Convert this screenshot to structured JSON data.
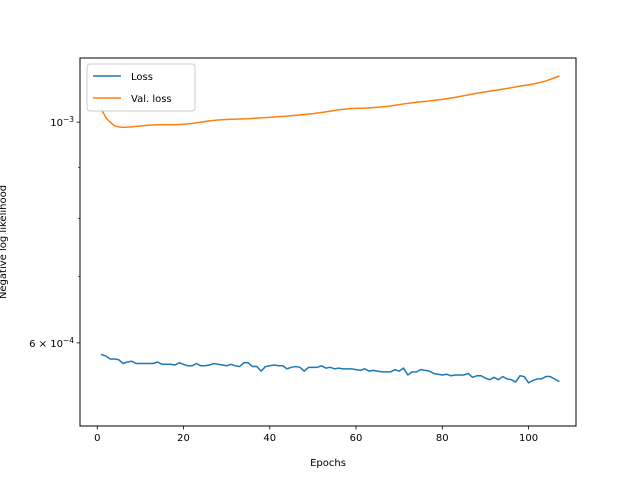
{
  "chart_data": {
    "type": "line",
    "title": "",
    "xlabel": "Epochs",
    "ylabel": "Negative log likelihood",
    "xlim": [
      -4,
      111
    ],
    "ylim": [
      0.000495,
      0.00116
    ],
    "yscale": "log",
    "grid": false,
    "legend_position": "upper-left",
    "x_ticks": [
      0,
      20,
      40,
      60,
      80,
      100
    ],
    "x_tick_labels": [
      "0",
      "20",
      "40",
      "60",
      "80",
      "100"
    ],
    "y_major_ticks": [
      {
        "value": 0.001,
        "base": "10",
        "exp": "−3"
      },
      {
        "value": 0.0006,
        "coef": "6",
        "base": "10",
        "exp": "−4"
      }
    ],
    "y_minor_ticks": [
      0.0007,
      0.0008,
      0.0009
    ],
    "series": [
      {
        "name": "Loss",
        "color": "#1f77b4",
        "points": [
          [
            1,
            0.000584
          ],
          [
            2,
            0.000582
          ],
          [
            3,
            0.000578
          ],
          [
            4,
            0.000578
          ],
          [
            5,
            0.000577
          ],
          [
            6,
            0.000572
          ],
          [
            7,
            0.000574
          ],
          [
            8,
            0.000575
          ],
          [
            9,
            0.000572
          ],
          [
            10,
            0.000572
          ],
          [
            11,
            0.000572
          ],
          [
            12,
            0.000572
          ],
          [
            13,
            0.000572
          ],
          [
            14,
            0.000574
          ],
          [
            15,
            0.000571
          ],
          [
            16,
            0.000571
          ],
          [
            17,
            0.000571
          ],
          [
            18,
            0.00057
          ],
          [
            19,
            0.000573
          ],
          [
            20,
            0.000571
          ],
          [
            21,
            0.000569
          ],
          [
            22,
            0.000569
          ],
          [
            23,
            0.000572
          ],
          [
            24,
            0.000569
          ],
          [
            25,
            0.000569
          ],
          [
            26,
            0.00057
          ],
          [
            27,
            0.000572
          ],
          [
            28,
            0.000571
          ],
          [
            29,
            0.00057
          ],
          [
            30,
            0.000569
          ],
          [
            31,
            0.000571
          ],
          [
            32,
            0.000569
          ],
          [
            33,
            0.000568
          ],
          [
            34,
            0.000573
          ],
          [
            35,
            0.000573
          ],
          [
            36,
            0.000568
          ],
          [
            37,
            0.000568
          ],
          [
            38,
            0.000562
          ],
          [
            39,
            0.000568
          ],
          [
            40,
            0.000569
          ],
          [
            41,
            0.00057
          ],
          [
            42,
            0.000569
          ],
          [
            43,
            0.000569
          ],
          [
            44,
            0.000565
          ],
          [
            45,
            0.000567
          ],
          [
            46,
            0.000568
          ],
          [
            47,
            0.000567
          ],
          [
            48,
            0.000562
          ],
          [
            49,
            0.000567
          ],
          [
            50,
            0.000567
          ],
          [
            51,
            0.000567
          ],
          [
            52,
            0.000569
          ],
          [
            53,
            0.000566
          ],
          [
            54,
            0.000567
          ],
          [
            55,
            0.000565
          ],
          [
            56,
            0.000566
          ],
          [
            57,
            0.000565
          ],
          [
            58,
            0.000565
          ],
          [
            59,
            0.000565
          ],
          [
            60,
            0.000564
          ],
          [
            61,
            0.000563
          ],
          [
            62,
            0.000565
          ],
          [
            63,
            0.000562
          ],
          [
            64,
            0.000563
          ],
          [
            65,
            0.000562
          ],
          [
            66,
            0.000561
          ],
          [
            67,
            0.000561
          ],
          [
            68,
            0.000561
          ],
          [
            69,
            0.000564
          ],
          [
            70,
            0.000562
          ],
          [
            71,
            0.000566
          ],
          [
            72,
            0.000557
          ],
          [
            73,
            0.000561
          ],
          [
            74,
            0.000561
          ],
          [
            75,
            0.000564
          ],
          [
            76,
            0.000563
          ],
          [
            77,
            0.000562
          ],
          [
            78,
            0.000559
          ],
          [
            79,
            0.000558
          ],
          [
            80,
            0.000557
          ],
          [
            81,
            0.000558
          ],
          [
            82,
            0.000556
          ],
          [
            83,
            0.000557
          ],
          [
            84,
            0.000557
          ],
          [
            85,
            0.000557
          ],
          [
            86,
            0.000559
          ],
          [
            87,
            0.000554
          ],
          [
            88,
            0.000556
          ],
          [
            89,
            0.000556
          ],
          [
            90,
            0.000553
          ],
          [
            91,
            0.000551
          ],
          [
            92,
            0.000554
          ],
          [
            93,
            0.000551
          ],
          [
            94,
            0.000555
          ],
          [
            95,
            0.000552
          ],
          [
            96,
            0.000551
          ],
          [
            97,
            0.000548
          ],
          [
            98,
            0.000556
          ],
          [
            99,
            0.000555
          ],
          [
            100,
            0.000547
          ],
          [
            101,
            0.00055
          ],
          [
            102,
            0.000552
          ],
          [
            103,
            0.000552
          ],
          [
            104,
            0.000555
          ],
          [
            105,
            0.000555
          ],
          [
            106,
            0.000552
          ],
          [
            107,
            0.000549
          ]
        ]
      },
      {
        "name": "Val. loss",
        "color": "#ff7f0e",
        "points": [
          [
            1,
            0.00103
          ],
          [
            2,
            0.00101
          ],
          [
            3,
            0.001
          ],
          [
            4,
            0.000992
          ],
          [
            5,
            0.000989
          ],
          [
            6,
            0.000988
          ],
          [
            8,
            0.000989
          ],
          [
            10,
            0.000991
          ],
          [
            12,
            0.000993
          ],
          [
            15,
            0.000994
          ],
          [
            18,
            0.000994
          ],
          [
            20,
            0.000995
          ],
          [
            22,
            0.000997
          ],
          [
            24,
            0.001
          ],
          [
            26,
            0.001003
          ],
          [
            28,
            0.001005
          ],
          [
            30,
            0.001006
          ],
          [
            32,
            0.001007
          ],
          [
            35,
            0.001008
          ],
          [
            38,
            0.00101
          ],
          [
            41,
            0.001012
          ],
          [
            44,
            0.001014
          ],
          [
            47,
            0.001017
          ],
          [
            50,
            0.00102
          ],
          [
            53,
            0.001024
          ],
          [
            56,
            0.001029
          ],
          [
            59,
            0.001032
          ],
          [
            62,
            0.001033
          ],
          [
            65,
            0.001035
          ],
          [
            68,
            0.001038
          ],
          [
            71,
            0.001043
          ],
          [
            74,
            0.001047
          ],
          [
            77,
            0.00105
          ],
          [
            80,
            0.001054
          ],
          [
            83,
            0.001059
          ],
          [
            86,
            0.001065
          ],
          [
            89,
            0.001071
          ],
          [
            92,
            0.001076
          ],
          [
            95,
            0.001081
          ],
          [
            98,
            0.001087
          ],
          [
            101,
            0.001092
          ],
          [
            104,
            0.0011
          ],
          [
            107,
            0.001112
          ]
        ]
      }
    ]
  }
}
